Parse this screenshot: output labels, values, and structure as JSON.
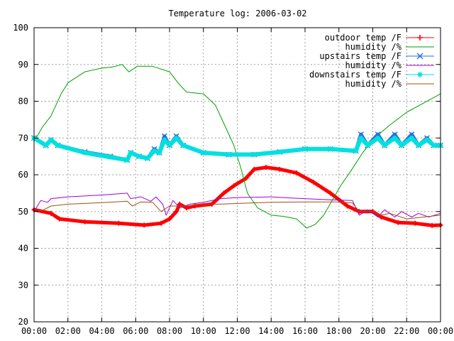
{
  "chart_data": {
    "type": "line",
    "title": "Temperature log: 2006-03-02",
    "xlabel": "",
    "ylabel": "",
    "xlim": [
      0,
      24
    ],
    "ylim": [
      20,
      100
    ],
    "grid": true,
    "legend_position": "top-right",
    "x_ticks": [
      "00:00",
      "02:00",
      "04:00",
      "06:00",
      "08:00",
      "10:00",
      "12:00",
      "14:00",
      "16:00",
      "18:00",
      "20:00",
      "22:00",
      "00:00"
    ],
    "y_ticks": [
      20,
      30,
      40,
      50,
      60,
      70,
      80,
      90,
      100
    ],
    "series": [
      {
        "name": "outdoor temp /F",
        "color": "#ff0000",
        "marker": "plus",
        "points": [
          [
            0,
            50.5
          ],
          [
            1,
            49.5
          ],
          [
            1.5,
            48
          ],
          [
            3,
            47.2
          ],
          [
            5,
            46.8
          ],
          [
            6.5,
            46.3
          ],
          [
            7.5,
            46.8
          ],
          [
            8,
            48
          ],
          [
            8.4,
            50
          ],
          [
            8.6,
            52
          ],
          [
            9,
            51
          ],
          [
            9.5,
            51.5
          ],
          [
            10.5,
            52
          ],
          [
            11.2,
            55
          ],
          [
            11.8,
            57
          ],
          [
            12.5,
            59
          ],
          [
            13,
            61.5
          ],
          [
            13.7,
            62
          ],
          [
            14.5,
            61.5
          ],
          [
            15.5,
            60.5
          ],
          [
            16.5,
            58
          ],
          [
            17.5,
            55
          ],
          [
            18.5,
            51.5
          ],
          [
            19.2,
            50
          ],
          [
            20,
            50
          ],
          [
            20.5,
            48.5
          ],
          [
            21.5,
            47
          ],
          [
            22.5,
            46.8
          ],
          [
            23.5,
            46.2
          ],
          [
            24,
            46.3
          ]
        ]
      },
      {
        "name": "humidity /%",
        "color": "#00a000",
        "marker": "",
        "points": [
          [
            0,
            69
          ],
          [
            0.5,
            73
          ],
          [
            1,
            76
          ],
          [
            1.6,
            82
          ],
          [
            2,
            85
          ],
          [
            3,
            88
          ],
          [
            4,
            89
          ],
          [
            4.6,
            89.3
          ],
          [
            5.2,
            90
          ],
          [
            5.6,
            88
          ],
          [
            6.1,
            89.5
          ],
          [
            7,
            89.5
          ],
          [
            8,
            88
          ],
          [
            8.5,
            85
          ],
          [
            9,
            82.5
          ],
          [
            10,
            82
          ],
          [
            10.7,
            79
          ],
          [
            11.2,
            74
          ],
          [
            11.8,
            68
          ],
          [
            12.2,
            62
          ],
          [
            12.6,
            55
          ],
          [
            13.2,
            51
          ],
          [
            14,
            49
          ],
          [
            14.7,
            48.7
          ],
          [
            15.5,
            48
          ],
          [
            16.1,
            45.5
          ],
          [
            16.6,
            46.5
          ],
          [
            17.1,
            49
          ],
          [
            17.6,
            53
          ],
          [
            18.1,
            57
          ],
          [
            18.7,
            61
          ],
          [
            19.4,
            66
          ],
          [
            20.1,
            70
          ],
          [
            21,
            73.5
          ],
          [
            22,
            77
          ],
          [
            23,
            79.5
          ],
          [
            24,
            82
          ]
        ]
      },
      {
        "name": "upstairs temp /F",
        "color": "#2b70d8",
        "marker": "x",
        "points": [
          [
            0,
            70
          ],
          [
            0.7,
            68
          ],
          [
            1,
            69.5
          ],
          [
            1.4,
            68
          ],
          [
            3,
            66.2
          ],
          [
            4.5,
            65
          ],
          [
            5.5,
            64
          ],
          [
            5.7,
            66
          ],
          [
            6.2,
            65
          ],
          [
            6.7,
            64.5
          ],
          [
            7.1,
            67
          ],
          [
            7.4,
            66
          ],
          [
            7.7,
            70.5
          ],
          [
            8,
            68
          ],
          [
            8.4,
            70.5
          ],
          [
            8.8,
            68
          ],
          [
            10,
            66
          ],
          [
            11.5,
            65.5
          ],
          [
            13,
            65.5
          ],
          [
            14.5,
            66.2
          ],
          [
            16,
            67
          ],
          [
            17.5,
            67
          ],
          [
            19,
            66.5
          ],
          [
            19.3,
            71
          ],
          [
            19.7,
            68
          ],
          [
            20.3,
            71
          ],
          [
            20.7,
            68
          ],
          [
            21.3,
            71
          ],
          [
            21.7,
            68
          ],
          [
            22.3,
            71
          ],
          [
            22.7,
            68
          ],
          [
            23.2,
            70
          ],
          [
            23.6,
            68
          ],
          [
            24,
            68
          ]
        ]
      },
      {
        "name": "humidity /%",
        "color": "#a000d8",
        "marker": "",
        "points": [
          [
            0,
            50
          ],
          [
            0.4,
            53
          ],
          [
            0.8,
            52.5
          ],
          [
            1,
            53.5
          ],
          [
            2,
            54
          ],
          [
            4,
            54.5
          ],
          [
            5.5,
            55
          ],
          [
            5.7,
            53.5
          ],
          [
            6.3,
            54
          ],
          [
            6.9,
            52.8
          ],
          [
            7.2,
            54
          ],
          [
            7.6,
            52
          ],
          [
            7.8,
            49
          ],
          [
            8.2,
            53
          ],
          [
            8.6,
            51
          ],
          [
            9.2,
            52
          ],
          [
            10,
            52.5
          ],
          [
            11,
            53.5
          ],
          [
            12,
            53.8
          ],
          [
            14,
            54
          ],
          [
            15.5,
            53.6
          ],
          [
            17.5,
            53.2
          ],
          [
            18.8,
            53
          ],
          [
            19.2,
            49
          ],
          [
            19.7,
            50.5
          ],
          [
            20.3,
            48.5
          ],
          [
            20.7,
            50.5
          ],
          [
            21.3,
            48.5
          ],
          [
            21.7,
            50
          ],
          [
            22.3,
            48.5
          ],
          [
            22.7,
            49.5
          ],
          [
            23.3,
            48.5
          ],
          [
            24,
            49.5
          ]
        ]
      },
      {
        "name": "downstairs temp /F",
        "color": "#00e0e0",
        "marker": "star",
        "points": [
          [
            0,
            70
          ],
          [
            0.7,
            68
          ],
          [
            1,
            69.5
          ],
          [
            1.4,
            68
          ],
          [
            3,
            66
          ],
          [
            4.5,
            64.8
          ],
          [
            5.5,
            64
          ],
          [
            5.7,
            66
          ],
          [
            6.2,
            65
          ],
          [
            6.7,
            64.5
          ],
          [
            7.1,
            66.5
          ],
          [
            7.4,
            66
          ],
          [
            7.7,
            69.5
          ],
          [
            8,
            68
          ],
          [
            8.4,
            70
          ],
          [
            8.8,
            68
          ],
          [
            10,
            66
          ],
          [
            11.5,
            65.5
          ],
          [
            13,
            65.5
          ],
          [
            14.5,
            66.2
          ],
          [
            16,
            67
          ],
          [
            17.5,
            67
          ],
          [
            19,
            66.5
          ],
          [
            19.3,
            70
          ],
          [
            19.7,
            68
          ],
          [
            20.3,
            70
          ],
          [
            20.7,
            68
          ],
          [
            21.3,
            70
          ],
          [
            21.7,
            68
          ],
          [
            22.3,
            70
          ],
          [
            22.7,
            68
          ],
          [
            23.2,
            69.5
          ],
          [
            23.6,
            68
          ],
          [
            24,
            68
          ]
        ]
      },
      {
        "name": "humidity /%",
        "color": "#a05010",
        "marker": "",
        "points": [
          [
            0,
            50
          ],
          [
            0.5,
            50.3
          ],
          [
            1,
            51.5
          ],
          [
            2,
            52
          ],
          [
            4,
            52.4
          ],
          [
            5.5,
            52.8
          ],
          [
            5.8,
            51.5
          ],
          [
            6.3,
            52.6
          ],
          [
            7,
            52.5
          ],
          [
            7.5,
            50
          ],
          [
            8,
            51.5
          ],
          [
            9,
            51.5
          ],
          [
            10,
            52
          ],
          [
            11,
            52
          ],
          [
            12,
            52.2
          ],
          [
            14,
            52.5
          ],
          [
            16,
            52.6
          ],
          [
            18,
            52.6
          ],
          [
            18.8,
            52.3
          ],
          [
            19.2,
            50
          ],
          [
            20,
            50
          ],
          [
            20.5,
            49
          ],
          [
            21,
            49.5
          ],
          [
            22,
            48
          ],
          [
            23,
            48.5
          ],
          [
            24,
            49
          ]
        ]
      }
    ]
  }
}
